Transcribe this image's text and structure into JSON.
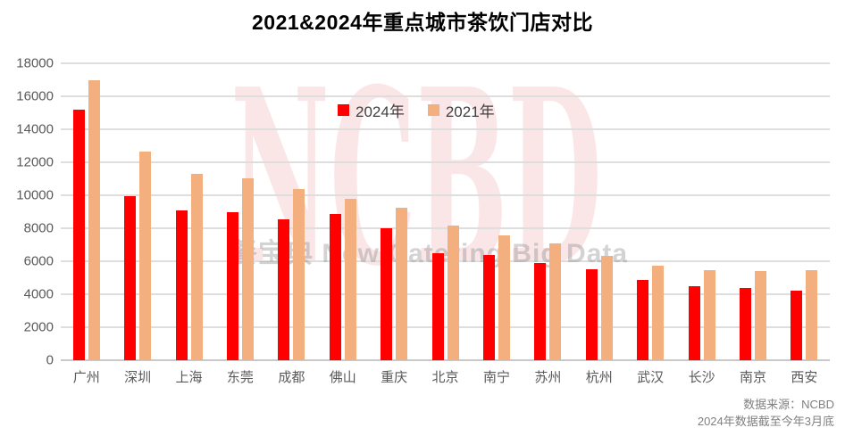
{
  "title": "2021&2024年重点城市茶饮门店对比",
  "legend": [
    {
      "label": "2024年",
      "color": "#ff0000"
    },
    {
      "label": "2021年",
      "color": "#f3af7e"
    }
  ],
  "watermark": {
    "big": "NCBD",
    "sub": "餐宝典  New Catering Big Data"
  },
  "footer": {
    "line1": "数据来源：NCBD",
    "line2": "2024年数据截至今年3月底"
  },
  "colors": {
    "bar_2024": "#ff0000",
    "bar_2021": "#f3af7e",
    "gridline": "#dedede",
    "axis_text": "#595959",
    "watermark_pink": "#fbe6e7"
  },
  "chart_data": {
    "type": "bar",
    "title": "2021&2024年重点城市茶饮门店对比",
    "categories": [
      "广州",
      "深圳",
      "上海",
      "东莞",
      "成都",
      "佛山",
      "重庆",
      "北京",
      "南宁",
      "苏州",
      "杭州",
      "武汉",
      "长沙",
      "南京",
      "西安"
    ],
    "series": [
      {
        "name": "2024年",
        "color": "#ff0000",
        "values": [
          15200,
          9950,
          9100,
          8950,
          8550,
          8850,
          8000,
          6500,
          6400,
          5900,
          5500,
          4850,
          4500,
          4400,
          4200
        ]
      },
      {
        "name": "2021年",
        "color": "#f3af7e",
        "values": [
          16950,
          12650,
          11300,
          11050,
          10400,
          9800,
          9250,
          8150,
          7550,
          7100,
          6300,
          5750,
          5450,
          5400,
          5450
        ]
      }
    ],
    "xlabel": "",
    "ylabel": "",
    "ylim": [
      0,
      18000
    ],
    "ytick_step": 2000,
    "yticks": [
      "0",
      "2000",
      "4000",
      "6000",
      "8000",
      "10000",
      "12000",
      "14000",
      "16000",
      "18000"
    ],
    "grid": true,
    "legend_position": "top-center"
  }
}
